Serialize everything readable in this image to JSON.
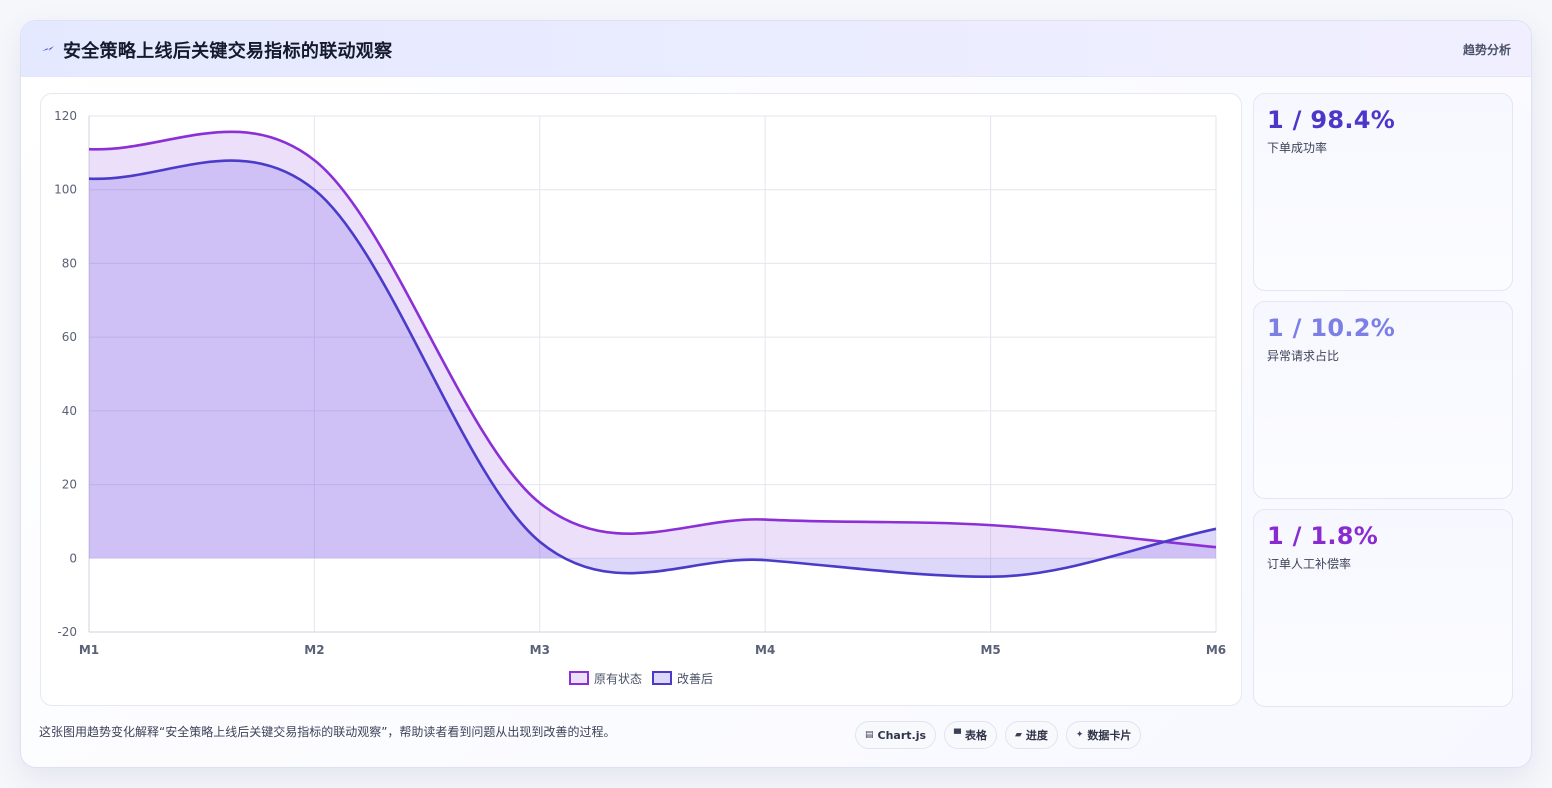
{
  "header": {
    "title": "安全策略上线后关键交易指标的联动观察",
    "tag": "趋势分析"
  },
  "chart_data": {
    "type": "area",
    "categories": [
      "M1",
      "M2",
      "M3",
      "M4",
      "M5",
      "M6"
    ],
    "series": [
      {
        "name": "原有状态",
        "values": [
          111,
          108,
          15,
          10.5,
          9,
          3
        ],
        "color": "#8b2fd6"
      },
      {
        "name": "改善后",
        "values": [
          103,
          100,
          4.5,
          -0.5,
          -5,
          8
        ],
        "color": "#4a3bc9"
      }
    ],
    "ylim": [
      -20,
      120
    ],
    "yticks": [
      -20,
      0,
      20,
      40,
      60,
      80,
      100,
      120
    ],
    "grid": true,
    "legend": "bottom",
    "title": "",
    "xlabel": "",
    "ylabel": ""
  },
  "stats": [
    {
      "value": "1 / 98.4%",
      "label": "下单成功率",
      "color": "#4b38c9"
    },
    {
      "value": "1 / 10.2%",
      "label": "异常请求占比",
      "color": "#7b7fe6"
    },
    {
      "value": "1 / 1.8%",
      "label": "订单人工补偿率",
      "color": "#8a2bd2"
    }
  ],
  "footer": {
    "note": "这张图用趋势变化解释“安全策略上线后关键交易指标的联动观察”，帮助读者看到问题从出现到改善的过程。",
    "chips": [
      {
        "icon": "▤",
        "icon_name": "chart-icon",
        "label": "Chart.js"
      },
      {
        "icon": "▀",
        "icon_name": "table-icon",
        "label": "表格"
      },
      {
        "icon": "▰",
        "icon_name": "progress-icon",
        "label": "进度"
      },
      {
        "icon": "✦",
        "icon_name": "sparkle-icon",
        "label": "数据卡片"
      }
    ]
  }
}
